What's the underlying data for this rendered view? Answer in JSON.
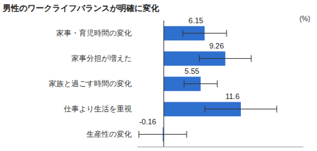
{
  "chart_data": {
    "type": "bar",
    "title": "男性のワークライフバランスが明確に変化",
    "xlabel": "(%)",
    "orientation": "horizontal",
    "categories": [
      "家事・育児時間の変化",
      "家事分担が増えた",
      "家族と過ごす時間の変化",
      "仕事より生活を重視",
      "生産性の変化"
    ],
    "values": [
      6.15,
      9.26,
      5.55,
      11.6,
      -0.16
    ],
    "errors": [
      3.3,
      3.9,
      2.5,
      5.4,
      3.6
    ],
    "color": "#2f6fce",
    "xlim": [
      -4,
      21
    ],
    "data_labels": true,
    "tick_labels": "y",
    "grid": false
  }
}
